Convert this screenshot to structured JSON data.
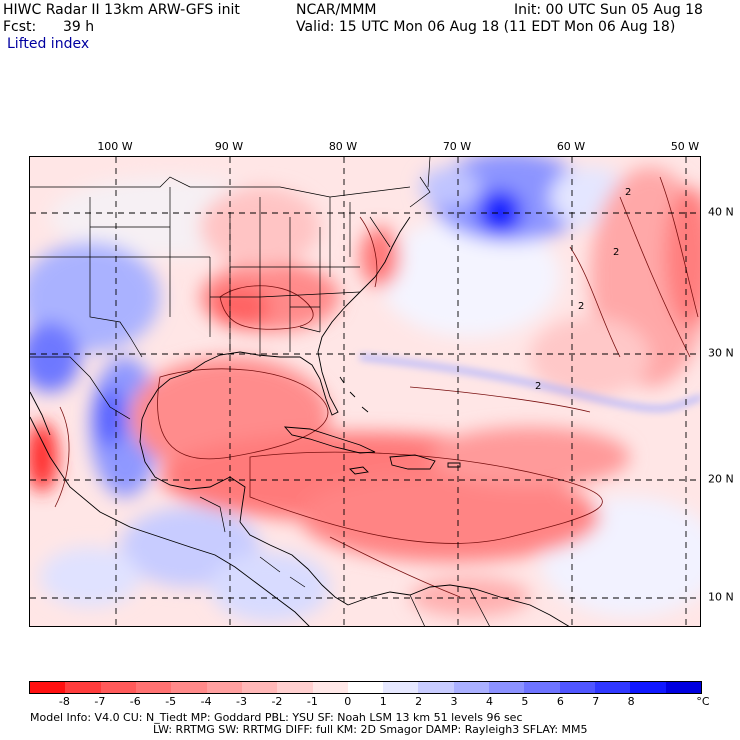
{
  "header": {
    "title": "HIWC Radar II 13km ARW-GFS init",
    "source": "NCAR/MMM",
    "init": "Init: 00 UTC Sun 05 Aug 18",
    "fcst_label": "Fcst:",
    "fcst_value": "39 h",
    "valid": "Valid: 15 UTC Mon 06 Aug 18 (11 EDT Mon 06 Aug 18)",
    "field": "Lifted index"
  },
  "map": {
    "lon_labels": [
      "100 W",
      "90 W",
      "80 W",
      "70 W",
      "60 W",
      "50 W"
    ],
    "lat_labels": [
      "40 N",
      "30 N",
      "20 N",
      "10 N"
    ],
    "contour_labels": [
      "2",
      "2",
      "2",
      "2"
    ]
  },
  "colorbar": {
    "ticks": [
      "-8",
      "-7",
      "-6",
      "-5",
      "-4",
      "-3",
      "-2",
      "-1",
      "0",
      "1",
      "2",
      "3",
      "4",
      "5",
      "6",
      "7",
      "8"
    ],
    "unit": "°C",
    "colors": [
      "#ff1010",
      "#ff3c3c",
      "#ff5a5a",
      "#ff7272",
      "#ff8a8a",
      "#ffa0a0",
      "#ffb8b8",
      "#ffd0d0",
      "#ffe8e8",
      "#ffffff",
      "#e6e8ff",
      "#c8ccff",
      "#aab0ff",
      "#8c92ff",
      "#6e74ff",
      "#5056ff",
      "#3038ff",
      "#1018ff",
      "#0000e0"
    ]
  },
  "model_info": {
    "line1": "Model Info: V4.0       CU: N_Tiedt  MP: Goddard      PBL: YSU        SF: Noah LSM     13 km    51 levels    96 sec",
    "line2": "LW: RRTMG     SW: RRTMG   DIFF: full    KM: 2D Smagor  DAMP: Rayleigh3   SFLAY: MM5"
  }
}
